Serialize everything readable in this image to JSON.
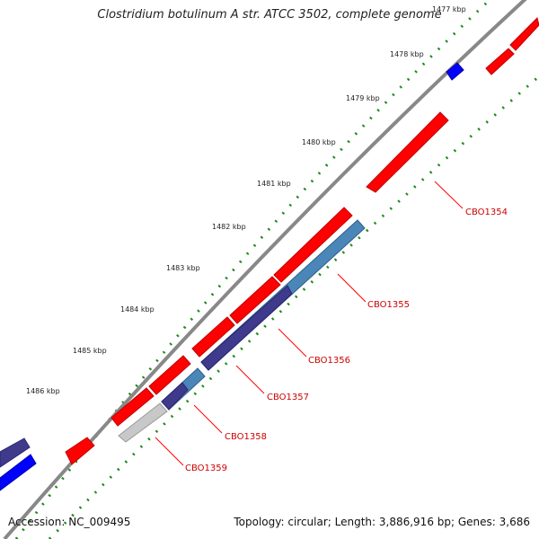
{
  "title": "Clostridium botulinum A str. ATCC 3502, complete genome",
  "footer": {
    "accession": "Accession: NC_009495",
    "summary": "Topology: circular; Length: 3,886,916 bp; Genes: 3,686"
  },
  "colors": {
    "forward_cds": "#ff0000",
    "reverse_cds": "#0000ff",
    "highlight_gene": "#4a86b8",
    "dark_gene": "#3f3a8c",
    "pseudo_gene": "#c8c8c8",
    "backbone": "#888888",
    "tick": "#1a8a1a",
    "gene_label": "#cc0000"
  },
  "ticks": [
    {
      "label": "1477 kbp"
    },
    {
      "label": "1478 kbp"
    },
    {
      "label": "1479 kbp"
    },
    {
      "label": "1480 kbp"
    },
    {
      "label": "1481 kbp"
    },
    {
      "label": "1482 kbp"
    },
    {
      "label": "1483 kbp"
    },
    {
      "label": "1484 kbp"
    },
    {
      "label": "1485 kbp"
    },
    {
      "label": "1486 kbp"
    }
  ],
  "genes": [
    {
      "label": "CBO1354"
    },
    {
      "label": "CBO1355"
    },
    {
      "label": "CBO1356"
    },
    {
      "label": "CBO1357"
    },
    {
      "label": "CBO1358"
    },
    {
      "label": "CBO1359"
    }
  ]
}
